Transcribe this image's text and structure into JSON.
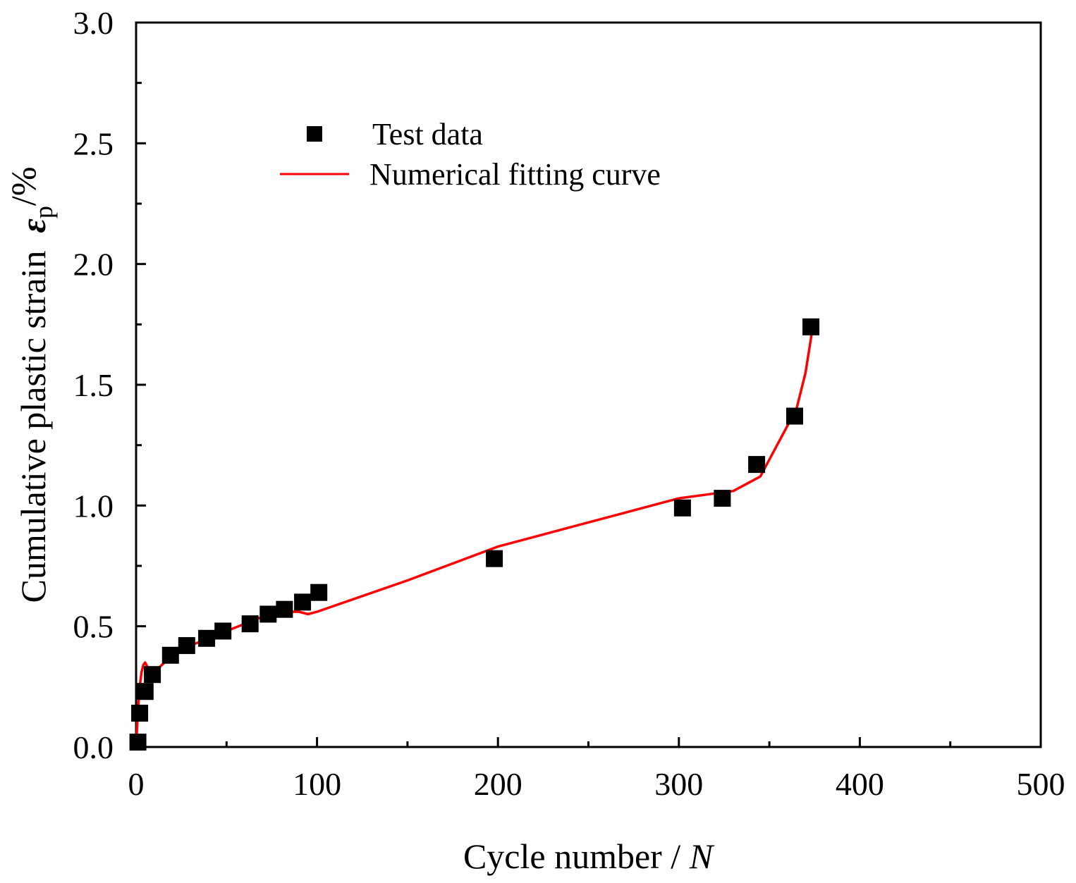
{
  "chart_data": {
    "type": "scatter",
    "title": "",
    "xlabel": "Cycle number / ",
    "xlabel_var": "N",
    "ylabel": "Cumulative plastic strain  ",
    "ylabel_symbol": "ε",
    "ylabel_sub": "p",
    "ylabel_unit": "/%",
    "xlim": [
      0,
      500
    ],
    "ylim": [
      0,
      3.0
    ],
    "xticks": [
      0,
      100,
      200,
      300,
      400,
      500
    ],
    "xtick_labels": [
      "0",
      "100",
      "200",
      "300",
      "400",
      "500"
    ],
    "yticks": [
      0,
      0.5,
      1.0,
      1.5,
      2.0,
      2.5,
      3.0
    ],
    "ytick_labels": [
      "0.0",
      "0.5",
      "1.0",
      "1.5",
      "2.0",
      "2.5",
      "3.0"
    ],
    "grid": false,
    "legend_position": "top-left",
    "series": [
      {
        "name": "Test data",
        "kind": "scatter",
        "marker": "square",
        "color": "#000000",
        "x": [
          1,
          2,
          5,
          9,
          19,
          28,
          39,
          48,
          63,
          73,
          82,
          92,
          101,
          198,
          302,
          324,
          343,
          364,
          373
        ],
        "y": [
          0.02,
          0.14,
          0.23,
          0.3,
          0.38,
          0.42,
          0.45,
          0.48,
          0.51,
          0.55,
          0.57,
          0.6,
          0.64,
          0.78,
          0.99,
          1.03,
          1.17,
          1.37,
          1.74
        ]
      },
      {
        "name": "Numerical fitting curve",
        "kind": "line",
        "color": "#ff0000",
        "x": [
          0,
          1,
          2,
          3,
          4,
          5,
          7,
          10,
          20,
          30,
          40,
          50,
          60,
          70,
          80,
          90,
          95,
          100,
          150,
          200,
          250,
          300,
          320,
          330,
          345,
          355,
          365,
          370,
          374
        ],
        "y": [
          0.0,
          0.15,
          0.25,
          0.31,
          0.34,
          0.35,
          0.32,
          0.31,
          0.38,
          0.42,
          0.45,
          0.48,
          0.51,
          0.54,
          0.56,
          0.56,
          0.55,
          0.56,
          0.69,
          0.83,
          0.93,
          1.03,
          1.05,
          1.06,
          1.12,
          1.26,
          1.4,
          1.55,
          1.74
        ]
      }
    ]
  }
}
